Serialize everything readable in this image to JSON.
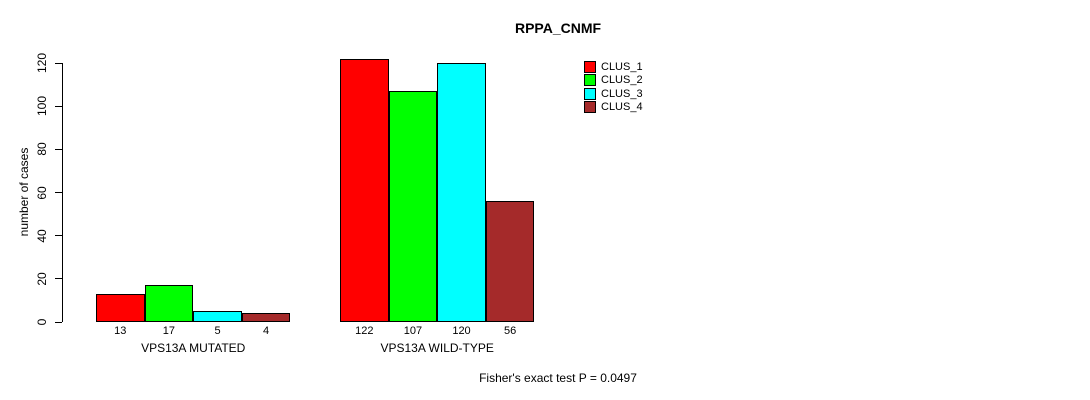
{
  "chart_data": {
    "type": "bar",
    "title": "RPPA_CNMF",
    "xlabel": "",
    "ylabel": "number of cases",
    "ylim": [
      0,
      120
    ],
    "yticks": [
      0,
      20,
      40,
      60,
      80,
      100,
      120
    ],
    "grid": false,
    "legend_position": "top-right",
    "categories": [
      "VPS13A MUTATED",
      "VPS13A WILD-TYPE"
    ],
    "series": [
      {
        "name": "CLUS_1",
        "color": "#FF0000",
        "values": [
          13,
          122
        ]
      },
      {
        "name": "CLUS_2",
        "color": "#00FF00",
        "values": [
          17,
          107
        ]
      },
      {
        "name": "CLUS_3",
        "color": "#00FFFF",
        "values": [
          5,
          120
        ]
      },
      {
        "name": "CLUS_4",
        "color": "#A52A2A",
        "values": [
          4,
          56
        ]
      }
    ],
    "bar_value_labels": [
      [
        "13",
        "17",
        "5",
        "4"
      ],
      [
        "122",
        "107",
        "120",
        "56"
      ]
    ],
    "annotation": "Fisher's exact test P = 0.0497"
  }
}
